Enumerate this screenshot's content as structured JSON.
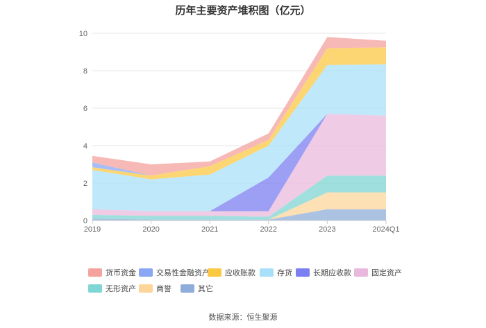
{
  "title": "历年主要资产堆积图（亿元）",
  "source": "数据来源：恒生聚源",
  "colors": [
    "#f4a29c",
    "#8aa7f5",
    "#fbc844",
    "#a9e0f9",
    "#7b7ff0",
    "#e9b9dd",
    "#7fd6d4",
    "#fcd59a",
    "#8fadda"
  ],
  "legend": [
    "货币资金",
    "交易性金融资产",
    "应收账款",
    "存货",
    "长期应收款",
    "固定资产",
    "无形资产",
    "商誉",
    "其它"
  ],
  "chart_data": {
    "type": "area",
    "stacked": true,
    "categories": [
      "2019",
      "2020",
      "2021",
      "2022",
      "2023",
      "2024Q1"
    ],
    "ylim": [
      0,
      10
    ],
    "yticks": [
      0,
      2,
      4,
      6,
      8,
      10
    ],
    "series": [
      {
        "name": "其它",
        "values": [
          0.1,
          0.05,
          0.05,
          0.05,
          0.6,
          0.6
        ]
      },
      {
        "name": "商誉",
        "values": [
          0.0,
          0.0,
          0.0,
          0.0,
          0.9,
          0.9
        ]
      },
      {
        "name": "无形资产",
        "values": [
          0.2,
          0.2,
          0.2,
          0.15,
          0.9,
          0.9
        ]
      },
      {
        "name": "固定资产",
        "values": [
          0.3,
          0.25,
          0.25,
          0.3,
          3.3,
          3.2
        ]
      },
      {
        "name": "长期应收款",
        "values": [
          0.0,
          0.0,
          0.0,
          1.8,
          0.0,
          0.0
        ]
      },
      {
        "name": "存货",
        "values": [
          2.1,
          1.7,
          1.95,
          1.7,
          2.6,
          2.75
        ]
      },
      {
        "name": "应收账款",
        "values": [
          0.15,
          0.2,
          0.45,
          0.3,
          0.9,
          0.9
        ]
      },
      {
        "name": "交易性金融资产",
        "values": [
          0.25,
          0.0,
          0.0,
          0.0,
          0.0,
          0.0
        ]
      },
      {
        "name": "货币资金",
        "values": [
          0.35,
          0.6,
          0.25,
          0.35,
          0.6,
          0.35
        ]
      }
    ]
  }
}
